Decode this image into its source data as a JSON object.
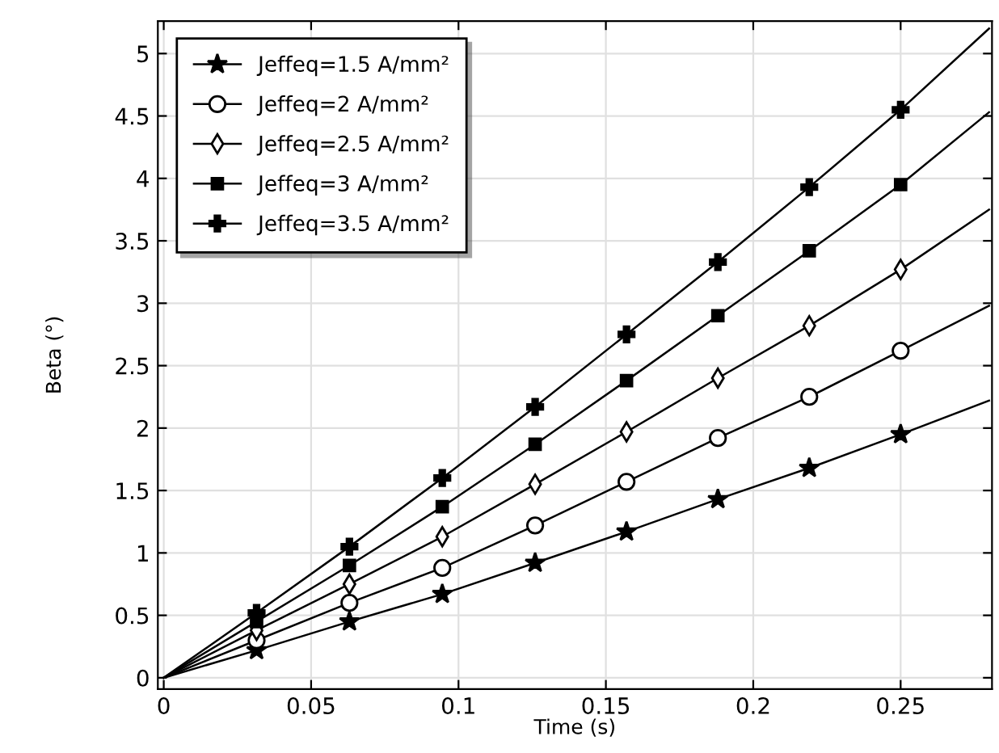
{
  "chart_data": {
    "type": "line",
    "xlabel": "Time (s)",
    "ylabel": "Beta (°)",
    "xlim": [
      -0.002,
      0.281
    ],
    "ylim": [
      -0.09,
      5.26
    ],
    "xticks": [
      0,
      0.05,
      0.1,
      0.15,
      0.2,
      0.25
    ],
    "yticks": [
      0,
      0.5,
      1,
      1.5,
      2,
      2.5,
      3,
      3.5,
      4,
      4.5,
      5
    ],
    "grid": true,
    "legend": "top left",
    "x": [
      0,
      0.0315,
      0.063,
      0.0945,
      0.126,
      0.157,
      0.188,
      0.219,
      0.25,
      0.28
    ],
    "series": [
      {
        "name": "Jeffeq=1.5 A/mm²",
        "color": "#000000",
        "marker": "star",
        "values": [
          0,
          0.22,
          0.45,
          0.67,
          0.92,
          1.17,
          1.43,
          1.68,
          1.95,
          2.22
        ]
      },
      {
        "name": "Jeffeq=2 A/mm²",
        "color": "#000000",
        "marker": "circle",
        "values": [
          0,
          0.3,
          0.6,
          0.88,
          1.22,
          1.57,
          1.92,
          2.25,
          2.62,
          2.98
        ]
      },
      {
        "name": "Jeffeq=2.5 A/mm²",
        "color": "#000000",
        "marker": "diamond",
        "values": [
          0,
          0.38,
          0.75,
          1.13,
          1.55,
          1.97,
          2.4,
          2.82,
          3.27,
          3.75
        ]
      },
      {
        "name": "Jeffeq=3 A/mm²",
        "color": "#000000",
        "marker": "square",
        "values": [
          0,
          0.45,
          0.9,
          1.37,
          1.87,
          2.38,
          2.9,
          3.42,
          3.95,
          4.53
        ]
      },
      {
        "name": "Jeffeq=3.5 A/mm²",
        "color": "#000000",
        "marker": "cross",
        "values": [
          0,
          0.52,
          1.05,
          1.6,
          2.17,
          2.75,
          3.33,
          3.93,
          4.55,
          5.2
        ]
      }
    ]
  }
}
